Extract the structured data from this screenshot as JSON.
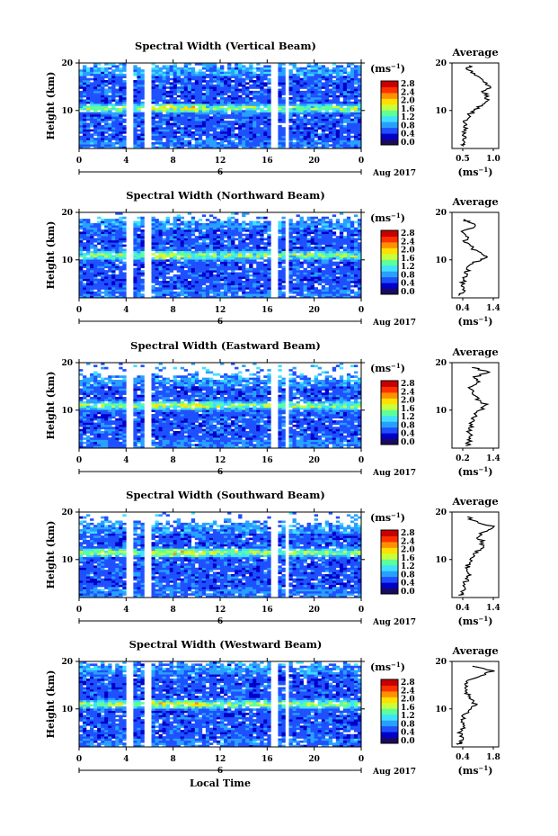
{
  "chart_data": [
    {
      "type": "heatmap",
      "title": "Spectral Width (Vertical Beam)",
      "ylabel": "Height (km)",
      "ylim": [
        2,
        20
      ],
      "xlim": [
        0,
        24
      ],
      "xticks": [
        "0",
        "4",
        "8",
        "12",
        "16",
        "20",
        "0"
      ],
      "date_mark": "6",
      "date_label": "Aug 2017",
      "colorbar": {
        "unit": "(ms",
        "unit_sup": "−1",
        "unit_close": ")",
        "ticks": [
          "0.0",
          "0.4",
          "0.8",
          "1.2",
          "1.6",
          "2.0",
          "2.4",
          "2.8"
        ]
      },
      "seed": 11,
      "gaps": [
        [
          4.0,
          4.6
        ],
        [
          5.6,
          6.0
        ],
        [
          16.3,
          16.9
        ],
        [
          17.6,
          17.9
        ]
      ],
      "inversion_h": 10.5,
      "top_cut": 19.5,
      "profile": {
        "title": "Average",
        "xticks": [
          "0.5",
          "1.0"
        ],
        "xlim": [
          0.3,
          1.2
        ],
        "xlabel": "(ms",
        "xlabel_sup": "−1",
        "xlabel_close": ")",
        "heights": [
          2.5,
          3,
          4,
          5,
          6,
          7,
          8,
          9,
          10,
          11,
          12,
          13,
          14,
          15,
          16,
          17,
          18,
          19,
          19.5
        ],
        "values": [
          0.55,
          0.5,
          0.52,
          0.56,
          0.53,
          0.58,
          0.55,
          0.62,
          0.75,
          0.85,
          0.95,
          1.0,
          0.92,
          1.05,
          0.9,
          0.85,
          0.7,
          0.6,
          0.65
        ]
      }
    },
    {
      "type": "heatmap",
      "title": "Spectral Width (Northward Beam)",
      "ylabel": "Height (km)",
      "ylim": [
        2,
        20
      ],
      "xlim": [
        0,
        24
      ],
      "xticks": [
        "0",
        "4",
        "8",
        "12",
        "16",
        "20",
        "0"
      ],
      "date_mark": "6",
      "date_label": "Aug 2017",
      "colorbar": {
        "unit": "(ms",
        "unit_sup": "−1",
        "unit_close": ")",
        "ticks": [
          "0.0",
          "0.4",
          "0.8",
          "1.2",
          "1.6",
          "2.0",
          "2.4",
          "2.8"
        ]
      },
      "seed": 23,
      "gaps": [
        [
          4.0,
          4.6
        ],
        [
          5.6,
          6.0
        ],
        [
          16.3,
          16.9
        ],
        [
          17.6,
          17.9
        ]
      ],
      "inversion_h": 11.0,
      "top_cut": 18.5,
      "profile": {
        "title": "Average",
        "xticks": [
          "0.4",
          "1.4"
        ],
        "xlim": [
          0.3,
          1.5
        ],
        "xlabel": "(ms",
        "xlabel_sup": "−1",
        "xlabel_close": ")",
        "heights": [
          2.5,
          3,
          4,
          5,
          6,
          7,
          8,
          9,
          10,
          10.5,
          11,
          12,
          13,
          14,
          15,
          16,
          17,
          18,
          18.5
        ],
        "values": [
          0.5,
          0.55,
          0.6,
          0.58,
          0.62,
          0.65,
          0.7,
          0.8,
          1.0,
          1.25,
          1.1,
          0.9,
          0.75,
          0.65,
          0.7,
          0.6,
          0.95,
          0.7,
          0.6
        ]
      }
    },
    {
      "type": "heatmap",
      "title": "Spectral Width (Eastward Beam)",
      "ylabel": "Height (km)",
      "ylim": [
        2,
        20
      ],
      "xlim": [
        0,
        24
      ],
      "xticks": [
        "0",
        "4",
        "8",
        "12",
        "16",
        "20",
        "0"
      ],
      "date_mark": "6",
      "date_label": "Aug 2017",
      "colorbar": {
        "unit": "(ms",
        "unit_sup": "−1",
        "unit_close": ")",
        "ticks": [
          "0.0",
          "0.4",
          "0.8",
          "1.2",
          "1.6",
          "2.0",
          "2.4",
          "2.8"
        ]
      },
      "seed": 37,
      "gaps": [
        [
          4.0,
          4.6
        ],
        [
          5.6,
          6.0
        ],
        [
          16.3,
          16.9
        ],
        [
          17.6,
          17.9
        ]
      ],
      "inversion_h": 11.0,
      "top_cut": 17.0,
      "profile": {
        "title": "Average",
        "xticks": [
          "0.2",
          "1.4"
        ],
        "xlim": [
          0.1,
          1.5
        ],
        "xlabel": "(ms",
        "xlabel_sup": "−1",
        "xlabel_close": ")",
        "heights": [
          2.5,
          3,
          4,
          5,
          6,
          7,
          8,
          9,
          10,
          11,
          12,
          13,
          14,
          15,
          16,
          17,
          18,
          19
        ],
        "values": [
          0.55,
          0.6,
          0.62,
          0.65,
          0.6,
          0.7,
          0.68,
          0.8,
          0.95,
          1.15,
          0.9,
          0.85,
          0.7,
          0.65,
          0.9,
          0.8,
          1.2,
          0.7
        ]
      }
    },
    {
      "type": "heatmap",
      "title": "Spectral Width (Southward Beam)",
      "ylabel": "Height (km)",
      "ylim": [
        2,
        20
      ],
      "xlim": [
        0,
        24
      ],
      "xticks": [
        "0",
        "4",
        "8",
        "12",
        "16",
        "20",
        "0"
      ],
      "date_mark": "6",
      "date_label": "Aug 2017",
      "colorbar": {
        "unit": "(ms",
        "unit_sup": "−1",
        "unit_close": ")",
        "ticks": [
          "0.0",
          "0.4",
          "0.8",
          "1.2",
          "1.6",
          "2.0",
          "2.4",
          "2.8"
        ]
      },
      "seed": 41,
      "gaps": [
        [
          4.0,
          4.6
        ],
        [
          5.6,
          6.0
        ],
        [
          16.3,
          16.9
        ],
        [
          17.6,
          17.9
        ]
      ],
      "inversion_h": 11.5,
      "top_cut": 17.5,
      "profile": {
        "title": "Average",
        "xticks": [
          "0.4",
          "1.4"
        ],
        "xlim": [
          0.3,
          1.5
        ],
        "xlabel": "(ms",
        "xlabel_sup": "−1",
        "xlabel_close": ")",
        "heights": [
          2.5,
          3,
          4,
          5,
          6,
          7,
          8,
          9,
          10,
          11,
          12,
          13,
          14,
          15,
          16,
          17,
          18,
          19
        ],
        "values": [
          0.5,
          0.55,
          0.6,
          0.62,
          0.7,
          0.75,
          0.7,
          0.72,
          0.8,
          0.85,
          1.0,
          1.1,
          1.05,
          0.95,
          1.2,
          1.35,
          0.9,
          0.7
        ]
      }
    },
    {
      "type": "heatmap",
      "title": "Spectral Width (Westward Beam)",
      "ylabel": "Height (km)",
      "ylim": [
        2,
        20
      ],
      "xlim": [
        0,
        24
      ],
      "xticks": [
        "0",
        "4",
        "8",
        "12",
        "16",
        "20",
        "0"
      ],
      "date_mark": "6",
      "date_label": "Aug 2017",
      "colorbar": {
        "unit": "(ms",
        "unit_sup": "−1",
        "unit_close": ")",
        "ticks": [
          "0.0",
          "0.4",
          "0.8",
          "1.2",
          "1.6",
          "2.0",
          "2.4",
          "2.8"
        ]
      },
      "seed": 53,
      "gaps": [
        [
          4.0,
          4.6
        ],
        [
          5.6,
          6.0
        ],
        [
          16.3,
          16.9
        ],
        [
          17.6,
          17.9
        ]
      ],
      "inversion_h": 11.0,
      "top_cut": 19.5,
      "xlabel": "Local Time",
      "profile": {
        "title": "Average",
        "xticks": [
          "0.4",
          "1.8"
        ],
        "xlim": [
          0.3,
          1.9
        ],
        "xlabel": "(ms",
        "xlabel_sup": "−1",
        "xlabel_close": ")",
        "heights": [
          2.5,
          3,
          4,
          5,
          6,
          7,
          8,
          9,
          10,
          11,
          12,
          13,
          14,
          15,
          16,
          17,
          18,
          19
        ],
        "values": [
          0.55,
          0.6,
          0.62,
          0.58,
          0.65,
          0.7,
          0.68,
          0.75,
          0.9,
          1.1,
          0.95,
          0.85,
          0.8,
          0.75,
          0.9,
          1.3,
          1.7,
          1.0
        ]
      }
    }
  ],
  "colormap": [
    "#1a0a5c",
    "#0000c8",
    "#1e50ff",
    "#29a0ff",
    "#40e0ff",
    "#5cff9a",
    "#c8ff3c",
    "#ffe000",
    "#ff9000",
    "#ff3000",
    "#c80000"
  ]
}
